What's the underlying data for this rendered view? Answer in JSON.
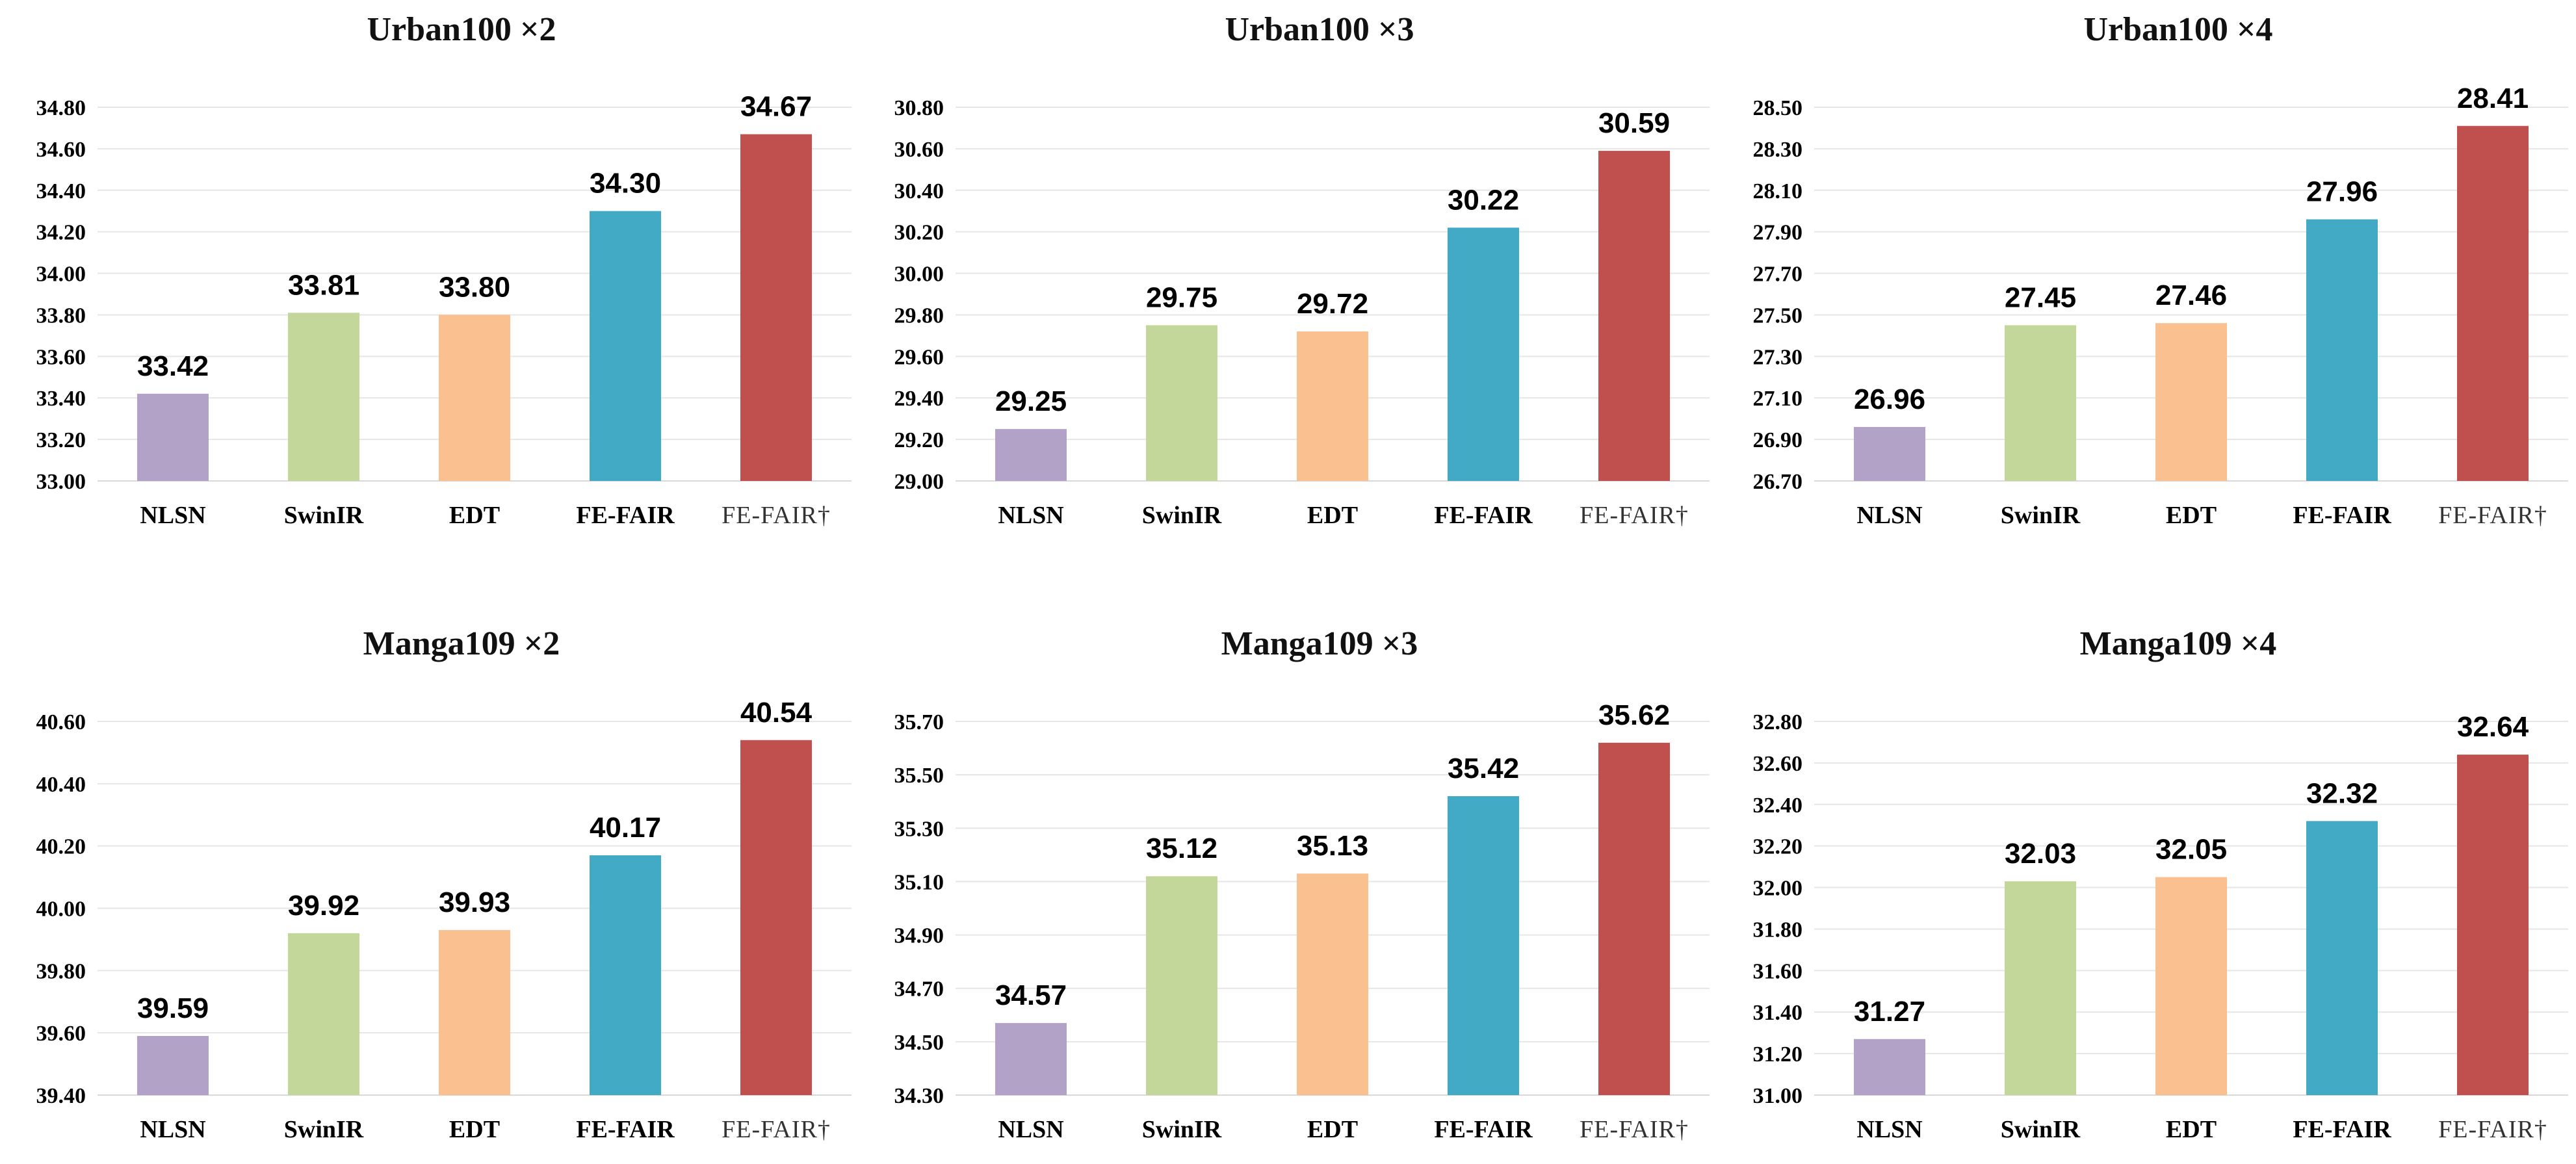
{
  "colors": {
    "NLSN": "#b3a2c7",
    "SwinIR": "#c4d79b",
    "EDT": "#fac090",
    "FE-FAIR": "#43aac6",
    "FE-FAIR†": "#c0504d"
  },
  "chart_data": [
    {
      "type": "bar",
      "title": "Urban100 ×2",
      "categories": [
        "NLSN",
        "SwinIR",
        "EDT",
        "FE-FAIR",
        "FE-FAIR†"
      ],
      "values": [
        33.42,
        33.81,
        33.8,
        34.3,
        34.67
      ],
      "value_labels": [
        "33.42",
        "33.81",
        "33.80",
        "34.30",
        "34.67"
      ],
      "yticks": [
        "33.00",
        "33.20",
        "33.40",
        "33.60",
        "33.80",
        "34.00",
        "34.20",
        "34.40",
        "34.60",
        "34.80"
      ],
      "ylim": [
        33.0,
        34.8
      ],
      "grid": true
    },
    {
      "type": "bar",
      "title": "Urban100 ×3",
      "categories": [
        "NLSN",
        "SwinIR",
        "EDT",
        "FE-FAIR",
        "FE-FAIR†"
      ],
      "values": [
        29.25,
        29.75,
        29.72,
        30.22,
        30.59
      ],
      "value_labels": [
        "29.25",
        "29.75",
        "29.72",
        "30.22",
        "30.59"
      ],
      "yticks": [
        "29.00",
        "29.20",
        "29.40",
        "29.60",
        "29.80",
        "30.00",
        "30.20",
        "30.40",
        "30.60",
        "30.80"
      ],
      "ylim": [
        29.0,
        30.8
      ],
      "grid": true
    },
    {
      "type": "bar",
      "title": "Urban100 ×4",
      "categories": [
        "NLSN",
        "SwinIR",
        "EDT",
        "FE-FAIR",
        "FE-FAIR†"
      ],
      "values": [
        26.96,
        27.45,
        27.46,
        27.96,
        28.41
      ],
      "value_labels": [
        "26.96",
        "27.45",
        "27.46",
        "27.96",
        "28.41"
      ],
      "yticks": [
        "26.70",
        "26.90",
        "27.10",
        "27.30",
        "27.50",
        "27.70",
        "27.90",
        "28.10",
        "28.30",
        "28.50"
      ],
      "ylim": [
        26.7,
        28.5
      ],
      "grid": true
    },
    {
      "type": "bar",
      "title": "Manga109 ×2",
      "categories": [
        "NLSN",
        "SwinIR",
        "EDT",
        "FE-FAIR",
        "FE-FAIR†"
      ],
      "values": [
        39.59,
        39.92,
        39.93,
        40.17,
        40.54
      ],
      "value_labels": [
        "39.59",
        "39.92",
        "39.93",
        "40.17",
        "40.54"
      ],
      "yticks": [
        "39.40",
        "39.60",
        "39.80",
        "40.00",
        "40.20",
        "40.40",
        "40.60"
      ],
      "ylim": [
        39.4,
        40.6
      ],
      "grid": true
    },
    {
      "type": "bar",
      "title": "Manga109 ×3",
      "categories": [
        "NLSN",
        "SwinIR",
        "EDT",
        "FE-FAIR",
        "FE-FAIR†"
      ],
      "values": [
        34.57,
        35.12,
        35.13,
        35.42,
        35.62
      ],
      "value_labels": [
        "34.57",
        "35.12",
        "35.13",
        "35.42",
        "35.62"
      ],
      "yticks": [
        "34.30",
        "34.50",
        "34.70",
        "34.90",
        "35.10",
        "35.30",
        "35.50",
        "35.70"
      ],
      "ylim": [
        34.3,
        35.7
      ],
      "grid": true
    },
    {
      "type": "bar",
      "title": "Manga109 ×4",
      "categories": [
        "NLSN",
        "SwinIR",
        "EDT",
        "FE-FAIR",
        "FE-FAIR†"
      ],
      "values": [
        31.27,
        32.03,
        32.05,
        32.32,
        32.64
      ],
      "value_labels": [
        "31.27",
        "32.03",
        "32.05",
        "32.32",
        "32.64"
      ],
      "yticks": [
        "31.00",
        "31.20",
        "31.40",
        "31.60",
        "31.80",
        "32.00",
        "32.20",
        "32.40",
        "32.60",
        "32.80"
      ],
      "ylim": [
        31.0,
        32.8
      ],
      "grid": true
    }
  ]
}
